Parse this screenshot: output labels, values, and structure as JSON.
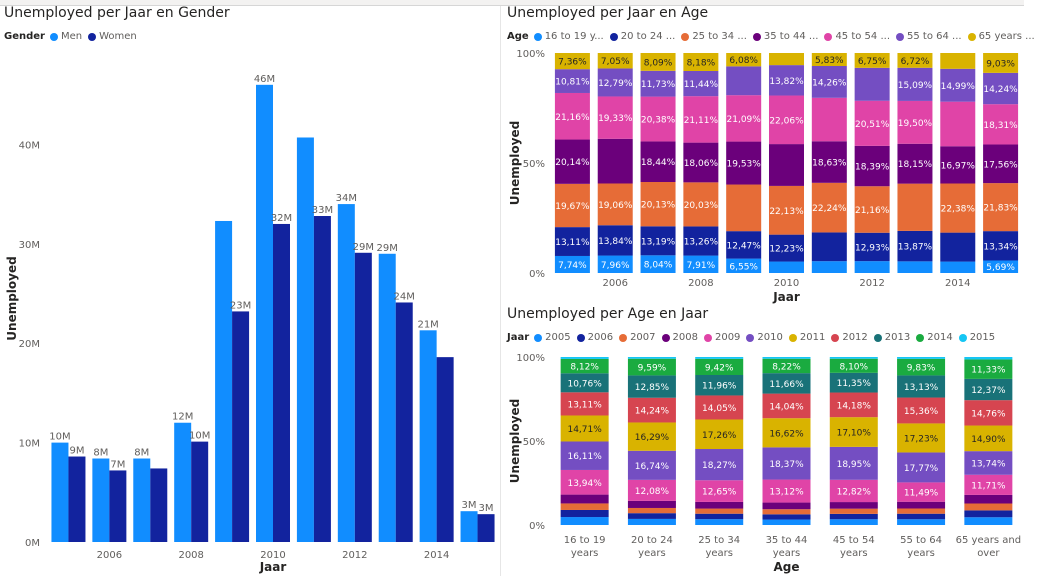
{
  "chart_data": [
    {
      "type": "bar",
      "title": "Unemployed per Jaar en Gender",
      "xlabel": "Jaar",
      "ylabel": "Unemployed",
      "legend_title": "Gender",
      "x": [
        2005,
        2006,
        2007,
        2008,
        2009,
        2010,
        2011,
        2012,
        2013,
        2014,
        2015
      ],
      "x_tick_labels": [
        "2006",
        "2008",
        "2010",
        "2012",
        "2014"
      ],
      "y_tick_labels": [
        "0M",
        "10M",
        "20M",
        "30M",
        "40M"
      ],
      "ylim": [
        0,
        49
      ],
      "colors": {
        "Men": "#118dff",
        "Women": "#12239e"
      },
      "series": [
        {
          "name": "Men",
          "values": [
            10,
            8.4,
            8.4,
            12,
            32.3,
            46,
            40.7,
            34,
            29,
            21.3,
            3.1
          ],
          "labels": [
            "10M",
            "8M",
            "8M",
            "12M",
            "",
            "46M",
            "",
            "34M",
            "29M",
            "21M",
            "3M"
          ]
        },
        {
          "name": "Women",
          "values": [
            8.6,
            7.2,
            7.4,
            10.1,
            23.2,
            32,
            32.8,
            29.1,
            24.1,
            18.6,
            2.8
          ],
          "labels": [
            "9M",
            "7M",
            "",
            "10M",
            "23M",
            "32M",
            "33M",
            "29M",
            "24M",
            "",
            "3M"
          ]
        }
      ]
    },
    {
      "type": "bar",
      "stacked": "100%",
      "title": "Unemployed per Jaar en Age",
      "xlabel": "Jaar",
      "ylabel": "Unemployed",
      "legend_title": "Age",
      "legend_labels": [
        "16 to 19 y...",
        "20 to 24 ...",
        "25 to 34 ...",
        "35 to 44 ...",
        "45 to 54 ...",
        "55 to 64 ...",
        "65 years ..."
      ],
      "x": [
        2005,
        2006,
        2007,
        2008,
        2009,
        2010,
        2011,
        2012,
        2013,
        2014,
        2015
      ],
      "x_tick_labels": [
        "2006",
        "2008",
        "2010",
        "2012",
        "2014"
      ],
      "y_tick_labels": [
        "0%",
        "50%",
        "100%"
      ],
      "colors": [
        "#118dff",
        "#12239e",
        "#e66c37",
        "#6b007b",
        "#e044a7",
        "#744ec2",
        "#d9b300"
      ],
      "series": [
        {
          "name": "16 to 19 years",
          "values": [
            7.74,
            7.96,
            8.04,
            7.91,
            6.55,
            5.2,
            5.3,
            5.4,
            5.3,
            5.2,
            5.69
          ],
          "labels": [
            "7,74%",
            "7,96%",
            "8,04%",
            "7,91%",
            "6,55%",
            "",
            "",
            "",
            "",
            "",
            "5,69%"
          ]
        },
        {
          "name": "20 to 24 years",
          "values": [
            13.11,
            13.84,
            13.19,
            13.26,
            12.47,
            12.23,
            12.9,
            12.93,
            13.87,
            13.2,
            13.34
          ],
          "labels": [
            "13,11%",
            "13,84%",
            "13,19%",
            "13,26%",
            "12,47%",
            "12,23%",
            "",
            "12,93%",
            "13,87%",
            "",
            "13,34%"
          ]
        },
        {
          "name": "25 to 34 years",
          "values": [
            19.67,
            19.06,
            20.13,
            20.03,
            21.2,
            22.13,
            22.24,
            21.16,
            21.5,
            22.38,
            21.83
          ],
          "labels": [
            "19,67%",
            "19,06%",
            "20,13%",
            "20,03%",
            "",
            "22,13%",
            "22,24%",
            "21,16%",
            "",
            "22,38%",
            "21,83%"
          ]
        },
        {
          "name": "35 to 44 years",
          "values": [
            20.14,
            20.4,
            18.44,
            18.06,
            19.53,
            19.0,
            18.63,
            18.39,
            18.15,
            16.97,
            17.56
          ],
          "labels": [
            "20,14%",
            "",
            "18,44%",
            "18,06%",
            "19,53%",
            "",
            "18,63%",
            "18,39%",
            "18,15%",
            "16,97%",
            "17,56%"
          ]
        },
        {
          "name": "45 to 54 years",
          "values": [
            21.16,
            19.33,
            20.38,
            21.11,
            21.09,
            22.06,
            19.5,
            20.51,
            19.5,
            20.3,
            18.31
          ],
          "labels": [
            "21,16%",
            "19,33%",
            "20,38%",
            "21,11%",
            "21,09%",
            "22,06%",
            "",
            "20,51%",
            "19,50%",
            "",
            "18,31%"
          ]
        },
        {
          "name": "55 to 64 years",
          "values": [
            10.81,
            12.79,
            11.73,
            11.44,
            13.1,
            13.82,
            14.26,
            15.0,
            15.09,
            14.99,
            14.24
          ],
          "labels": [
            "10,81%",
            "12,79%",
            "11,73%",
            "11,44%",
            "",
            "13,82%",
            "14,26%",
            "",
            "15,09%",
            "14,99%",
            "14,24%"
          ]
        },
        {
          "name": "65 years and over",
          "values": [
            7.36,
            7.05,
            8.09,
            8.18,
            6.08,
            5.5,
            5.83,
            6.75,
            6.72,
            7.2,
            9.03
          ],
          "labels": [
            "7,36%",
            "7,05%",
            "8,09%",
            "8,18%",
            "6,08%",
            "",
            "5,83%",
            "6,75%",
            "6,72%",
            "",
            "9,03%"
          ]
        }
      ]
    },
    {
      "type": "bar",
      "stacked": "100%",
      "title": "Unemployed per Age en Jaar",
      "xlabel": "Age",
      "ylabel": "Unemployed",
      "legend_title": "Jaar",
      "categories": [
        "16 to 19 years",
        "20 to 24 years",
        "25 to 34 years",
        "35 to 44 years",
        "45 to 54 years",
        "55 to 64 years",
        "65 years and over"
      ],
      "category_lines": [
        [
          "16 to 19",
          "years"
        ],
        [
          "20 to 24",
          "years"
        ],
        [
          "25 to 34",
          "years"
        ],
        [
          "35 to 44",
          "years"
        ],
        [
          "45 to 54",
          "years"
        ],
        [
          "55 to 64",
          "years"
        ],
        [
          "65 years and",
          "over"
        ]
      ],
      "y_tick_labels": [
        "0%",
        "50%",
        "100%"
      ],
      "colors": [
        "#118dff",
        "#12239e",
        "#e66c37",
        "#6b007b",
        "#e044a7",
        "#744ec2",
        "#d9b300",
        "#d64550",
        "#197278",
        "#1aab40",
        "#15c6f4"
      ],
      "series": [
        {
          "name": "2005",
          "values": [
            4.5,
            3.5,
            3.4,
            3.1,
            3.3,
            3.4,
            4.5
          ],
          "labels": [
            "",
            "",
            "",
            "",
            "",
            "",
            ""
          ]
        },
        {
          "name": "2006",
          "values": [
            4.0,
            3.3,
            3.2,
            3.0,
            3.1,
            3.3,
            4.0
          ],
          "labels": [
            "",
            "",
            "",
            "",
            "",
            "",
            ""
          ]
        },
        {
          "name": "2007",
          "values": [
            3.7,
            3.0,
            3.0,
            2.9,
            3.0,
            3.1,
            4.0
          ],
          "labels": [
            "",
            "",
            "",
            "",
            "",
            "",
            ""
          ]
        },
        {
          "name": "2008",
          "values": [
            5.0,
            4.1,
            3.9,
            3.8,
            3.8,
            4.0,
            5.0
          ],
          "labels": [
            "",
            "",
            "",
            "",
            "",
            "",
            ""
          ]
        },
        {
          "name": "2009",
          "values": [
            13.94,
            12.08,
            12.65,
            13.12,
            12.82,
            11.49,
            11.71
          ],
          "labels": [
            "13,94%",
            "12,08%",
            "12,65%",
            "13,12%",
            "12,82%",
            "11,49%",
            "11,71%"
          ]
        },
        {
          "name": "2010",
          "values": [
            16.11,
            16.74,
            18.27,
            18.37,
            18.95,
            17.77,
            13.74
          ],
          "labels": [
            "16,11%",
            "16,74%",
            "18,27%",
            "18,37%",
            "18,95%",
            "17,77%",
            "13,74%"
          ]
        },
        {
          "name": "2011",
          "values": [
            14.71,
            16.29,
            17.26,
            16.62,
            17.1,
            17.23,
            14.9
          ],
          "labels": [
            "14,71%",
            "16,29%",
            "17,26%",
            "16,62%",
            "17,10%",
            "17,23%",
            "14,90%"
          ]
        },
        {
          "name": "2012",
          "values": [
            13.11,
            14.24,
            14.05,
            14.04,
            14.18,
            15.36,
            14.76
          ],
          "labels": [
            "13,11%",
            "14,24%",
            "14,05%",
            "14,04%",
            "14,18%",
            "15,36%",
            "14,76%"
          ]
        },
        {
          "name": "2013",
          "values": [
            10.76,
            12.85,
            11.96,
            11.66,
            11.35,
            13.13,
            12.37
          ],
          "labels": [
            "10,76%",
            "12,85%",
            "11,96%",
            "11,66%",
            "11,35%",
            "13,13%",
            "12,37%"
          ]
        },
        {
          "name": "2014",
          "values": [
            8.12,
            9.59,
            9.42,
            8.22,
            8.1,
            9.83,
            11.33
          ],
          "labels": [
            "8,12%",
            "9,59%",
            "9,42%",
            "8,22%",
            "8,10%",
            "9,83%",
            "11,33%"
          ]
        },
        {
          "name": "2015",
          "values": [
            1.1,
            1.0,
            1.1,
            1.0,
            1.0,
            1.1,
            1.4
          ],
          "labels": [
            "",
            "",
            "",
            "",
            "",
            "",
            ""
          ]
        }
      ]
    }
  ]
}
